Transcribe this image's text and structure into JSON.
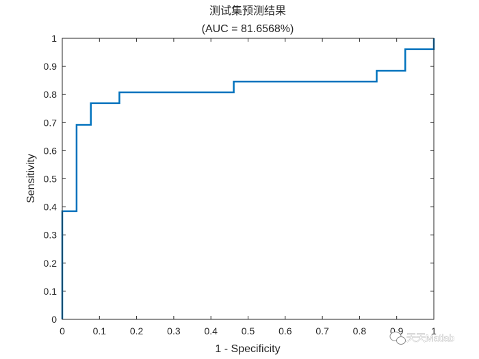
{
  "chart_data": {
    "type": "line",
    "title": "测试集预测结果",
    "subtitle": "(AUC = 81.6568%)",
    "xlabel": "1 - Specificity",
    "ylabel": "Sensitivity",
    "xlim": [
      0,
      1
    ],
    "ylim": [
      0,
      1
    ],
    "xticks": [
      0,
      0.1,
      0.2,
      0.3,
      0.4,
      0.5,
      0.6,
      0.7,
      0.8,
      0.9,
      1
    ],
    "yticks": [
      0,
      0.1,
      0.2,
      0.3,
      0.4,
      0.5,
      0.6,
      0.7,
      0.8,
      0.9,
      1
    ],
    "xtick_labels": [
      "0",
      "0.1",
      "0.2",
      "0.3",
      "0.4",
      "0.5",
      "0.6",
      "0.7",
      "0.8",
      "0.9",
      "1"
    ],
    "ytick_labels": [
      "0",
      "0.1",
      "0.2",
      "0.3",
      "0.4",
      "0.5",
      "0.6",
      "0.7",
      "0.8",
      "0.9",
      "1"
    ],
    "grid": false,
    "series": [
      {
        "color": "#0072bd",
        "x": [
          0,
          0,
          0.0385,
          0.0385,
          0.0769,
          0.0769,
          0.1538,
          0.1538,
          0.4615,
          0.4615,
          0.8462,
          0.8462,
          0.9231,
          0.9231,
          1,
          1
        ],
        "y": [
          0,
          0.3846,
          0.3846,
          0.6923,
          0.6923,
          0.7692,
          0.7692,
          0.8077,
          0.8077,
          0.8462,
          0.8462,
          0.8846,
          0.8846,
          0.9615,
          0.9615,
          1
        ]
      }
    ]
  },
  "watermark": {
    "text": "天天Matlab",
    "icon": "wechat-logo-icon"
  }
}
